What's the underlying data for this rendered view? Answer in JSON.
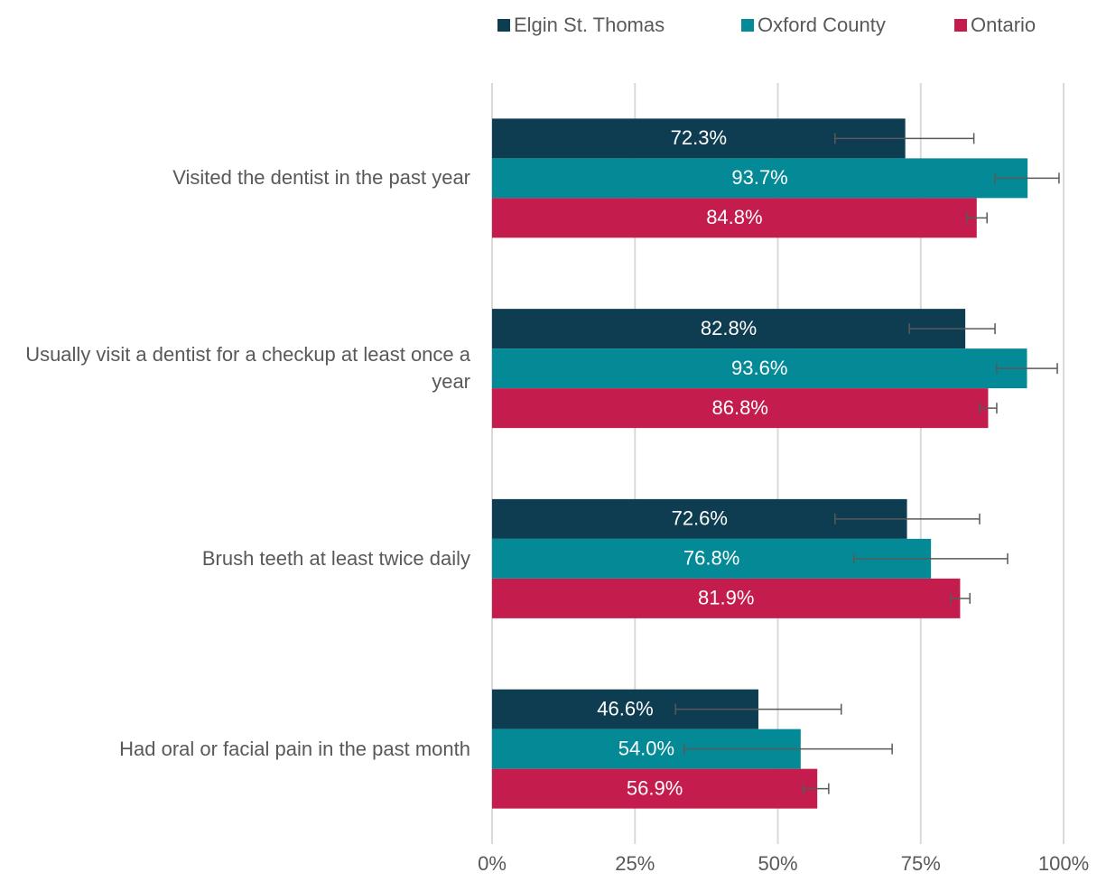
{
  "chart_data": {
    "type": "hbar",
    "categories": [
      "Visited the dentist in the past year",
      "Usually visit a dentist for a checkup at least once a year",
      "Brush teeth at least twice daily",
      "Had oral or facial pain in the past month"
    ],
    "series": [
      {
        "name": "Elgin St. Thomas",
        "color": "#0e3d52",
        "values": [
          72.3,
          82.8,
          72.6,
          46.6
        ],
        "value_labels": [
          "72.3%",
          "82.8%",
          "72.6%",
          "46.6%"
        ],
        "ci": [
          [
            60,
            84.3
          ],
          [
            73,
            88
          ],
          [
            60,
            85.3
          ],
          [
            32.1,
            61.1
          ]
        ]
      },
      {
        "name": "Oxford County",
        "color": "#048a96",
        "values": [
          93.7,
          93.6,
          76.8,
          54.0
        ],
        "value_labels": [
          "93.7%",
          "93.6%",
          "76.8%",
          "54.0%"
        ],
        "ci": [
          [
            88,
            99.2
          ],
          [
            88.3,
            98.9
          ],
          [
            63.3,
            90.2
          ],
          [
            33.6,
            70.0
          ]
        ]
      },
      {
        "name": "Ontario",
        "color": "#c41c4c",
        "values": [
          84.8,
          86.8,
          81.9,
          56.9
        ],
        "value_labels": [
          "84.8%",
          "86.8%",
          "81.9%",
          "56.9%"
        ],
        "ci": [
          [
            83.1,
            86.6
          ],
          [
            85.3,
            88.3
          ],
          [
            80.3,
            83.6
          ],
          [
            54.5,
            58.9
          ]
        ]
      }
    ],
    "xlim": [
      0,
      100
    ],
    "xticks": [
      {
        "value": 0,
        "label": "0%"
      },
      {
        "value": 25,
        "label": "25%"
      },
      {
        "value": 50,
        "label": "50%"
      },
      {
        "value": 75,
        "label": "75%"
      },
      {
        "value": 100,
        "label": "100%"
      }
    ],
    "grid": true,
    "legend": "top"
  }
}
